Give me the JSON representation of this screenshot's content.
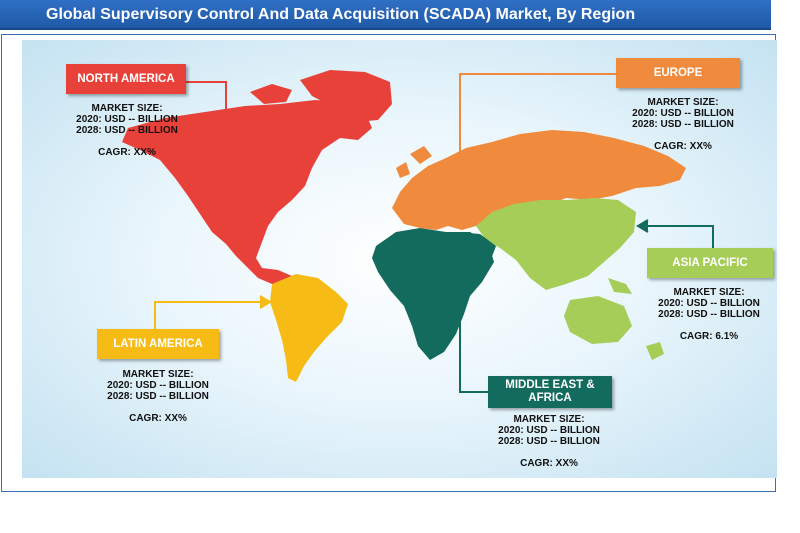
{
  "title": "Global Supervisory Control And Data Acquisition (SCADA) Market, By Region",
  "colors": {
    "title_bar": "#2360b3",
    "north_america": "#e8413a",
    "europe": "#f08a3c",
    "asia_pacific": "#a6cd58",
    "latin_america": "#f6bb14",
    "middle_east_africa": "#126b5c"
  },
  "regions": {
    "north_america": {
      "label": "NORTH  AMERICA",
      "market_size": "MARKET SIZE:",
      "y2020": "2020: USD -- BILLION",
      "y2028": "2028: USD -- BILLION",
      "cagr": "CAGR: XX%"
    },
    "europe": {
      "label": "EUROPE",
      "market_size": "MARKET SIZE:",
      "y2020": "2020: USD -- BILLION",
      "y2028": "2028: USD -- BILLION",
      "cagr": "CAGR: XX%"
    },
    "asia_pacific": {
      "label": "ASIA PACIFIC",
      "market_size": "MARKET SIZE:",
      "y2020": "2020: USD -- BILLION",
      "y2028": "2028: USD -- BILLION",
      "cagr": "CAGR: 6.1%"
    },
    "latin_america": {
      "label": "LATIN AMERICA",
      "market_size": "MARKET SIZE:",
      "y2020": "2020: USD -- BILLION",
      "y2028": "2028: USD -- BILLION",
      "cagr": "CAGR: XX%"
    },
    "middle_east_africa": {
      "label": "MIDDLE EAST & AFRICA",
      "market_size": "MARKET SIZE:",
      "y2020": "2020: USD -- BILLION",
      "y2028": "2028: USD -- BILLION",
      "cagr": "CAGR: XX%"
    }
  }
}
